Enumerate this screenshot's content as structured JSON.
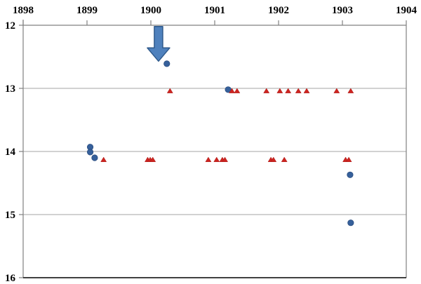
{
  "chart_data": {
    "type": "scatter",
    "title": "",
    "xlabel": "",
    "ylabel": "",
    "x_axis": {
      "position": "top",
      "min": 1898,
      "max": 1904,
      "tick_labels": [
        "1898",
        "1899",
        "1900",
        "1901",
        "1902",
        "1903",
        "1904"
      ]
    },
    "y_axis": {
      "position": "left",
      "min": 12,
      "max": 16,
      "inverted_down": true,
      "tick_labels": [
        "12",
        "13",
        "14",
        "15",
        "16"
      ]
    },
    "grid": "horizontal-only",
    "legend": "none",
    "series": [
      {
        "name": "blue-circle-series",
        "marker": "circle",
        "color": "#36609B",
        "edge_color": "#2B4E80",
        "points": [
          [
            1899.05,
            13.93
          ],
          [
            1899.05,
            14.01
          ],
          [
            1899.12,
            14.1
          ],
          [
            1900.25,
            12.61
          ],
          [
            1901.21,
            13.02
          ],
          [
            1903.12,
            14.37
          ],
          [
            1903.13,
            15.13
          ]
        ]
      },
      {
        "name": "red-triangle-series",
        "marker": "triangle",
        "color": "#CE2420",
        "edge_color": "#A81B18",
        "points": [
          [
            1899.26,
            14.13
          ],
          [
            1899.95,
            14.13
          ],
          [
            1899.99,
            14.13
          ],
          [
            1900.03,
            14.13
          ],
          [
            1900.3,
            13.04
          ],
          [
            1900.9,
            14.13
          ],
          [
            1901.03,
            14.13
          ],
          [
            1901.12,
            14.13
          ],
          [
            1901.16,
            14.13
          ],
          [
            1901.27,
            13.04
          ],
          [
            1901.35,
            13.04
          ],
          [
            1901.81,
            13.04
          ],
          [
            1901.88,
            14.13
          ],
          [
            1901.92,
            14.13
          ],
          [
            1902.02,
            13.04
          ],
          [
            1902.09,
            14.13
          ],
          [
            1902.15,
            13.04
          ],
          [
            1902.31,
            13.04
          ],
          [
            1902.44,
            13.04
          ],
          [
            1902.91,
            13.04
          ],
          [
            1903.05,
            14.13
          ],
          [
            1903.1,
            14.13
          ],
          [
            1903.13,
            13.04
          ]
        ]
      }
    ],
    "annotations": [
      {
        "type": "down-arrow",
        "x": 1900.12,
        "y_start": 12.02,
        "y_tip": 12.57,
        "fill": "#4F81BD",
        "stroke": "#2F5A8C"
      }
    ],
    "colors": {
      "gridline": "#A6A6A6",
      "axis_line": "#808080",
      "bottom_border": "#262626",
      "background": "#FFFFFF"
    }
  }
}
